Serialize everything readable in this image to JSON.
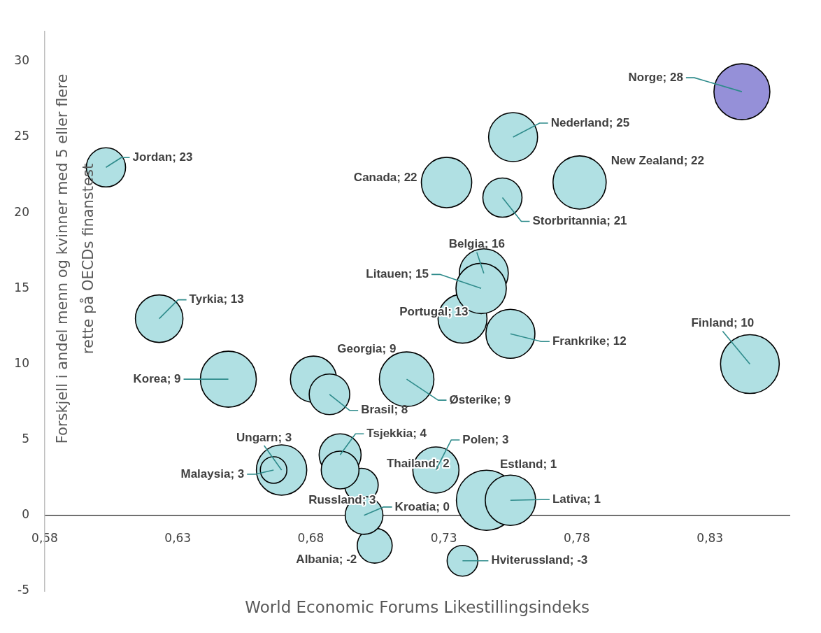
{
  "chart_data": {
    "type": "bubble",
    "xlabel": "World Economic Forums Likestillingsindeks",
    "ylabel": "Forskjell i andel menn og kvinner med 5 eller flere rette på OECDs finanstest",
    "x": [
      0.842,
      0.756,
      0.781,
      0.731,
      0.752,
      0.603,
      0.745,
      0.737,
      0.744,
      0.755,
      0.623,
      0.845,
      0.649,
      0.681,
      0.687,
      0.716,
      0.669,
      0.666,
      0.699,
      0.704,
      0.7,
      0.691,
      0.691,
      0.727,
      0.746,
      0.755,
      0.737
    ],
    "values": [
      28,
      25,
      22,
      22,
      21,
      23,
      16,
      13,
      15,
      12,
      13,
      10,
      9,
      9,
      8,
      9,
      3,
      3,
      2,
      -2,
      0,
      4,
      3,
      3,
      1,
      1,
      -3
    ],
    "sizes": [
      0.865,
      0.663,
      0.781,
      0.701,
      0.424,
      0.424,
      0.663,
      0.663,
      0.701,
      0.663,
      0.625,
      0.954,
      0.865,
      0.589,
      0.455,
      0.823,
      0.701,
      0.195,
      0.312,
      0.338,
      0.394,
      0.487,
      0.394,
      0.589,
      1,
      0.701,
      0.262
    ],
    "colors": [
      "#9590d8",
      "#b0e0e3",
      "#b0e0e3",
      "#b0e0e3",
      "#b0e0e3",
      "#b0e0e3",
      "#b0e0e3",
      "#b0e0e3",
      "#b0e0e3",
      "#b0e0e3",
      "#b0e0e3",
      "#b0e0e3",
      "#b0e0e3",
      "#b0e0e3",
      "#b0e0e3",
      "#b0e0e3",
      "#b0e0e3",
      "#b0e0e3",
      "#b0e0e3",
      "#b0e0e3",
      "#b0e0e3",
      "#b0e0e3",
      "#b0e0e3",
      "#b0e0e3",
      "#b0e0e3",
      "#b0e0e3",
      "#b0e0e3"
    ],
    "value_labels": [
      "Norge; 28",
      "Nederland; 25",
      "New Zealand; 22",
      "Canada; 22",
      "Storbritannia; 21",
      "Jordan; 23",
      "Belgia; 16",
      "Portugal; 13",
      "Litauen; 15",
      "Frankrike; 12",
      "Tyrkia; 13",
      "Finland; 10",
      "Korea; 9",
      "Georgia; 9",
      "Brasil; 8",
      "Østerike; 9",
      "Ungarn; 3",
      "Malaysia; 3",
      "Thailand; 2",
      "Albania; -2",
      "Kroatia; 0",
      "Tsjekkia; 4",
      "Russland; 3",
      "Polen; 3",
      "Estland; 1",
      "Lativa; 1",
      "Hviterussland; -3"
    ],
    "xlim": [
      0.58,
      0.86
    ],
    "xticks": [
      {
        "value": 0.58,
        "label": "0,58"
      },
      {
        "value": 0.63,
        "label": "0,63"
      },
      {
        "value": 0.68,
        "label": "0,68"
      },
      {
        "value": 0.73,
        "label": "0,73"
      },
      {
        "value": 0.78,
        "label": "0,78"
      },
      {
        "value": 0.83,
        "label": "0,83"
      }
    ],
    "ylim": [
      -5,
      32
    ],
    "yticks": [
      -5,
      0,
      5,
      10,
      15,
      20,
      25,
      30
    ]
  }
}
